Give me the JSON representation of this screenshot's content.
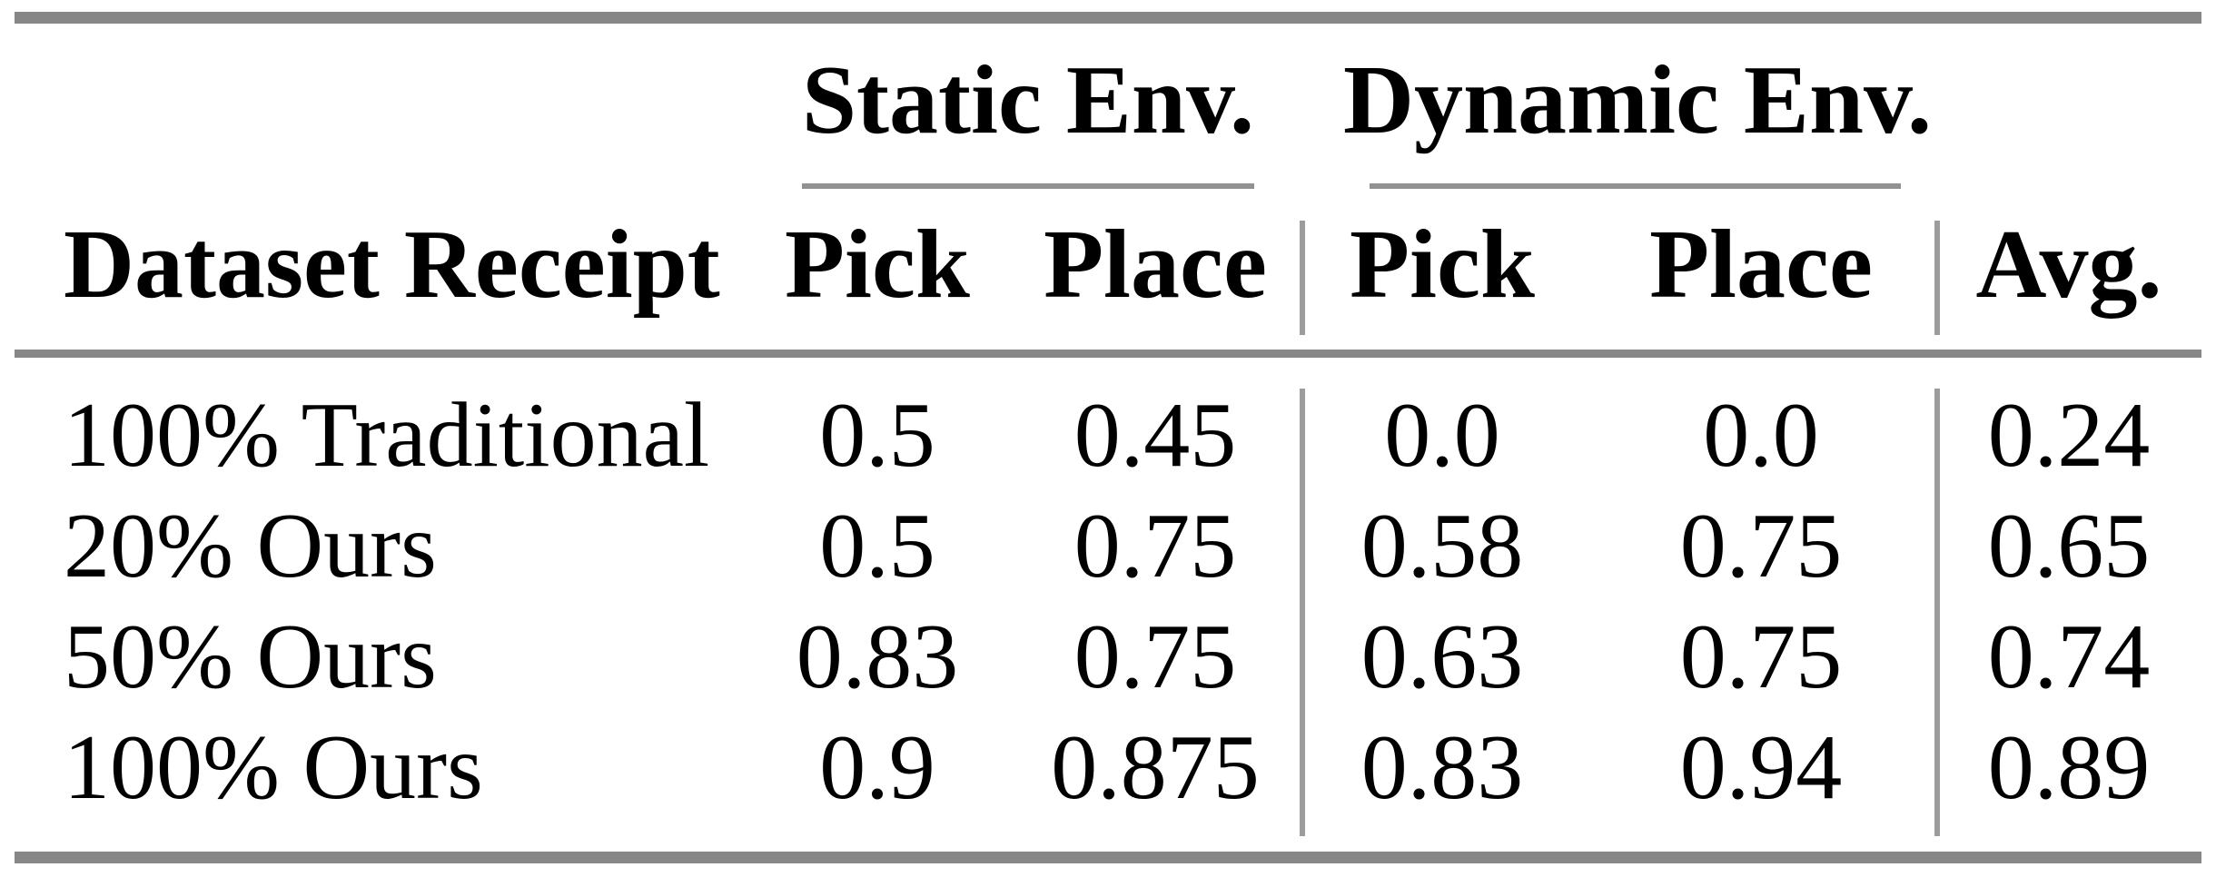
{
  "colors": {
    "background": "#ffffff",
    "text": "#000000",
    "thick_rule_gray": "#878787",
    "thin_rule_gray": "#9c9c9c"
  },
  "table": {
    "column_groups": [
      {
        "label": "Static Env."
      },
      {
        "label": "Dynamic Env."
      }
    ],
    "headers": {
      "dataset": "Dataset Receipt",
      "static_pick": "Pick",
      "static_place": "Place",
      "dynamic_pick": "Pick",
      "dynamic_place": "Place",
      "avg": "Avg."
    },
    "rows": [
      {
        "label": "100% Traditional",
        "static_pick": "0.5",
        "static_place": "0.45",
        "dynamic_pick": "0.0",
        "dynamic_place": "0.0",
        "avg": "0.24"
      },
      {
        "label": "20% Ours",
        "static_pick": "0.5",
        "static_place": "0.75",
        "dynamic_pick": "0.58",
        "dynamic_place": "0.75",
        "avg": "0.65"
      },
      {
        "label": "50% Ours",
        "static_pick": "0.83",
        "static_place": "0.75",
        "dynamic_pick": "0.63",
        "dynamic_place": "0.75",
        "avg": "0.74"
      },
      {
        "label": "100% Ours",
        "static_pick": "0.9",
        "static_place": "0.875",
        "dynamic_pick": "0.83",
        "dynamic_place": "0.94",
        "avg": "0.89"
      }
    ]
  },
  "chart_data": {
    "type": "table",
    "title": "",
    "column_groups": [
      "Static Env.",
      "Dynamic Env."
    ],
    "columns": [
      "Dataset Receipt",
      "Static Env. Pick",
      "Static Env. Place",
      "Dynamic Env. Pick",
      "Dynamic Env. Place",
      "Avg."
    ],
    "rows": [
      [
        "100% Traditional",
        0.5,
        0.45,
        0.0,
        0.0,
        0.24
      ],
      [
        "20% Ours",
        0.5,
        0.75,
        0.58,
        0.75,
        0.65
      ],
      [
        "50% Ours",
        0.83,
        0.75,
        0.63,
        0.75,
        0.74
      ],
      [
        "100% Ours",
        0.9,
        0.875,
        0.83,
        0.94,
        0.89
      ]
    ],
    "notes": "Success rates table; thick gray top/mid/bottom rules, thin gray underlines beneath each column group, gray vertical separators before Dynamic Env. group and before Avg. column"
  }
}
